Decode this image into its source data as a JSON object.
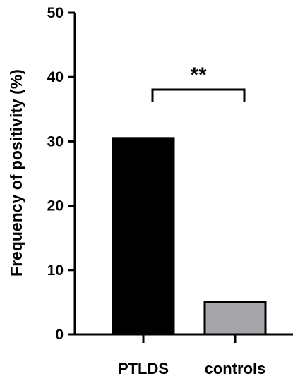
{
  "chart_data": {
    "type": "bar",
    "categories": [
      "PTLDS",
      "controls"
    ],
    "values": [
      30.5,
      5
    ],
    "colors": [
      "#000000",
      "#a6a5aa"
    ],
    "title": "",
    "xlabel": "",
    "ylabel": "Frequency of positivity (%)",
    "ylim": [
      0,
      50
    ],
    "yticks": [
      0,
      10,
      20,
      30,
      40,
      50
    ],
    "grid": false,
    "annotations": [
      {
        "text": "**",
        "between": [
          "PTLDS",
          "controls"
        ]
      }
    ]
  }
}
